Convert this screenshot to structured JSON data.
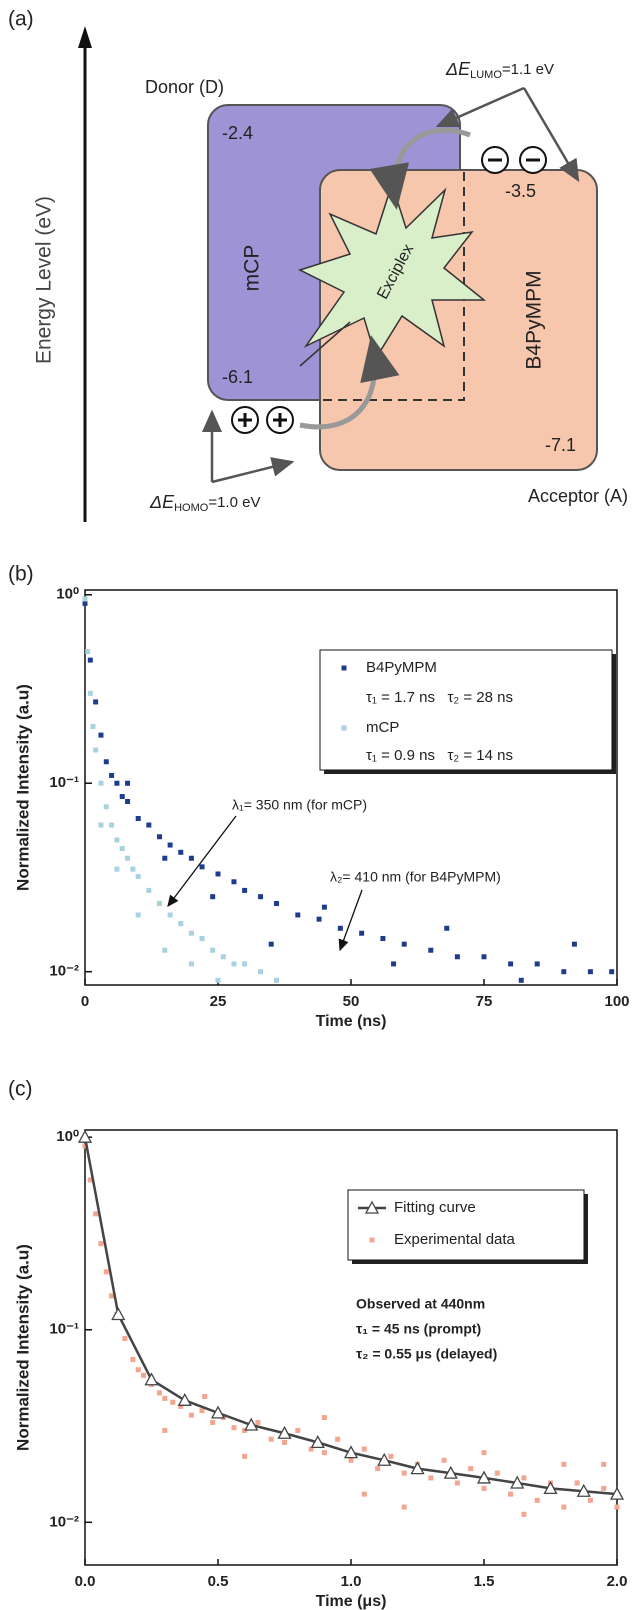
{
  "energy_diagram": {
    "panel_label": "(a)",
    "axis_label": "Energy Level (eV)",
    "donor": {
      "label": "Donor (D)",
      "material": "mCP",
      "lumo": "-2.4",
      "homo": "-6.1"
    },
    "acceptor": {
      "label": "Acceptor (A)",
      "material": "B4PyMPM",
      "lumo": "-3.5",
      "homo": "-7.1"
    },
    "exciplex": "Exciplex",
    "delta_e_lumo": {
      "symbol": "ΔE",
      "subscript": "LUMO",
      "value": "=1.1 eV"
    },
    "delta_e_homo": {
      "symbol": "ΔE",
      "subscript": "HOMO",
      "value": "=1.0 eV"
    }
  },
  "chart_data": [
    {
      "type": "scatter",
      "panel_label": "(b)",
      "x_label": "Time (ns)",
      "y_label": "Normalized Intensity (a.u)",
      "xlim": [
        0,
        100
      ],
      "xticks": [
        0,
        25,
        50,
        75,
        100
      ],
      "yscale": "log",
      "ylim": [
        0.0085,
        1.06
      ],
      "yticks": [
        {
          "value": 1,
          "label": "10⁰"
        },
        {
          "value": 0.1,
          "label": "10⁻¹"
        },
        {
          "value": 0.01,
          "label": "10⁻²"
        }
      ],
      "legend": "upper right",
      "annotations": [
        "λ₁= 350 nm (for mCP)",
        "λ₂= 410 nm (for B4PyMPM)"
      ],
      "series": [
        {
          "name": "B4PyMPM",
          "note": "τ₁ = 1.7 ns   τ₂ = 28 ns",
          "color": "#1f3b8c",
          "marker": "square",
          "x": [
            0,
            1,
            2,
            3,
            4,
            5,
            6,
            7,
            8,
            10,
            12,
            14,
            16,
            18,
            20,
            22,
            25,
            28,
            30,
            33,
            36,
            40,
            44,
            48,
            52,
            56,
            60,
            65,
            70,
            75,
            80,
            85,
            90,
            95,
            99,
            8,
            15,
            24,
            35,
            45,
            58,
            68,
            82,
            92
          ],
          "values": [
            0.9,
            0.45,
            0.27,
            0.18,
            0.13,
            0.11,
            0.1,
            0.085,
            0.08,
            0.065,
            0.06,
            0.052,
            0.047,
            0.043,
            0.04,
            0.036,
            0.033,
            0.03,
            0.027,
            0.025,
            0.023,
            0.02,
            0.019,
            0.017,
            0.016,
            0.015,
            0.014,
            0.013,
            0.012,
            0.012,
            0.011,
            0.011,
            0.01,
            0.01,
            0.01,
            0.1,
            0.04,
            0.025,
            0.014,
            0.022,
            0.011,
            0.017,
            0.009,
            0.014
          ]
        },
        {
          "name": "mCP",
          "note": "τ₁ = 0.9 ns   τ₂ = 14 ns",
          "color": "#a9d2de",
          "marker": "square",
          "x": [
            0,
            0.5,
            1,
            1.5,
            2,
            3,
            4,
            5,
            6,
            7,
            8,
            9,
            10,
            12,
            14,
            16,
            18,
            20,
            22,
            24,
            26,
            28,
            30,
            33,
            36,
            3,
            6,
            10,
            15,
            20,
            25
          ],
          "values": [
            0.95,
            0.5,
            0.3,
            0.2,
            0.15,
            0.1,
            0.075,
            0.06,
            0.05,
            0.045,
            0.04,
            0.035,
            0.032,
            0.027,
            0.023,
            0.02,
            0.018,
            0.016,
            0.015,
            0.013,
            0.012,
            0.011,
            0.011,
            0.01,
            0.009,
            0.06,
            0.035,
            0.02,
            0.013,
            0.011,
            0.009
          ]
        }
      ]
    },
    {
      "type": "scatter",
      "panel_label": "(c)",
      "x_label": "Time (μs)",
      "y_label": "Normalized Intensity (a.u)",
      "xlim": [
        0,
        2
      ],
      "xticks": [
        {
          "value": 0,
          "label": "0.0"
        },
        0.5,
        {
          "value": 1,
          "label": "1.0"
        },
        1.5,
        {
          "value": 2,
          "label": "2.0"
        }
      ],
      "yscale": "log",
      "ylim": [
        0.006,
        1.09
      ],
      "yticks": [
        {
          "value": 1,
          "label": "10⁰"
        },
        {
          "value": 0.1,
          "label": "10⁻¹"
        },
        {
          "value": 0.01,
          "label": "10⁻²"
        }
      ],
      "legend": "upper right",
      "annotations": [
        "Observed at 440nm",
        "τ₁ = 45 ns (prompt)",
        "τ₂ = 0.55 μs (delayed)"
      ],
      "series": [
        {
          "name": "Experimental data",
          "color": "#f4a58f",
          "marker": "square",
          "x": [
            0,
            0.02,
            0.04,
            0.06,
            0.08,
            0.1,
            0.12,
            0.15,
            0.18,
            0.2,
            0.22,
            0.25,
            0.28,
            0.3,
            0.33,
            0.36,
            0.4,
            0.44,
            0.48,
            0.52,
            0.56,
            0.6,
            0.65,
            0.7,
            0.75,
            0.8,
            0.85,
            0.9,
            0.95,
            1.0,
            1.05,
            1.1,
            1.15,
            1.2,
            1.25,
            1.3,
            1.35,
            1.4,
            1.45,
            1.5,
            1.55,
            1.6,
            1.65,
            1.7,
            1.75,
            1.8,
            1.85,
            1.9,
            1.95,
            2.0,
            0.3,
            0.6,
            0.9,
            1.2,
            1.5,
            1.8,
            0.45,
            1.05,
            1.65,
            1.95
          ],
          "values": [
            0.9,
            0.6,
            0.4,
            0.28,
            0.2,
            0.15,
            0.12,
            0.09,
            0.07,
            0.062,
            0.058,
            0.052,
            0.047,
            0.044,
            0.042,
            0.04,
            0.036,
            0.038,
            0.033,
            0.035,
            0.031,
            0.03,
            0.033,
            0.027,
            0.026,
            0.03,
            0.024,
            0.023,
            0.027,
            0.021,
            0.024,
            0.019,
            0.022,
            0.018,
            0.02,
            0.017,
            0.021,
            0.016,
            0.019,
            0.015,
            0.018,
            0.014,
            0.017,
            0.013,
            0.016,
            0.012,
            0.016,
            0.013,
            0.015,
            0.012,
            0.03,
            0.022,
            0.035,
            0.012,
            0.023,
            0.02,
            0.045,
            0.014,
            0.011,
            0.02
          ]
        },
        {
          "name": "Fitting curve",
          "color": "#444444",
          "marker": "triangle",
          "line": true,
          "x": [
            0,
            0.125,
            0.25,
            0.375,
            0.5,
            0.625,
            0.75,
            0.875,
            1,
            1.125,
            1.25,
            1.375,
            1.5,
            1.625,
            1.75,
            1.875,
            2
          ],
          "values": [
            1.0,
            0.12,
            0.055,
            0.043,
            0.037,
            0.032,
            0.029,
            0.026,
            0.023,
            0.021,
            0.019,
            0.018,
            0.017,
            0.016,
            0.015,
            0.0145,
            0.014
          ]
        }
      ]
    }
  ]
}
